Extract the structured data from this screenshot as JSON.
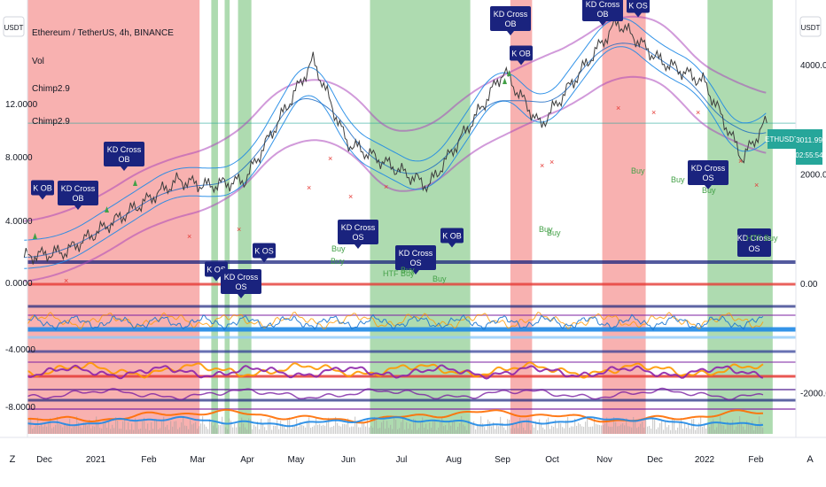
{
  "legend": {
    "title": "Ethereum / TetherUS, 4h, BINANCE",
    "lines": [
      "Vol",
      "Chimp2.9",
      "Chimp2.9"
    ]
  },
  "top_badges": {
    "left": "USDT",
    "right": "USDT"
  },
  "bottom_badges": {
    "left": "Z",
    "right": "A"
  },
  "ticker_label": {
    "symbol": "ETHUSDT",
    "price": "3011.99",
    "countdown": "02:55:54"
  },
  "chart_data": {
    "type": "line",
    "symbol": "Ethereum / TetherUS",
    "interval": "4h",
    "exchange": "BINANCE",
    "x_ticks": [
      "Dec",
      "2021",
      "Feb",
      "Mar",
      "Apr",
      "May",
      "Jun",
      "Jul",
      "Aug",
      "Sep",
      "Oct",
      "Nov",
      "Dec",
      "2022",
      "Feb"
    ],
    "left_axis_ticks": [
      "12.0000",
      "8.0000",
      "4.0000",
      "0.0000",
      "-4.0000",
      "-8.0000"
    ],
    "right_axis_ticks": [
      "4000.00",
      "2000.00",
      "0.00",
      "-2000.00"
    ],
    "right_ylim": [
      -2800,
      5200
    ],
    "last_price": 3011.99,
    "price_approx": [
      {
        "x": "Nov 20",
        "price": 500
      },
      {
        "x": "Dec 15",
        "price": 600
      },
      {
        "x": "Jan 10",
        "price": 1100
      },
      {
        "x": "Feb 20",
        "price": 1900
      },
      {
        "x": "Mar 10",
        "price": 1800
      },
      {
        "x": "Apr 01",
        "price": 1900
      },
      {
        "x": "May 12",
        "price": 4100
      },
      {
        "x": "Jun 01",
        "price": 2600
      },
      {
        "x": "Jul 20",
        "price": 1800
      },
      {
        "x": "Aug 20",
        "price": 3200
      },
      {
        "x": "Sep 03",
        "price": 3900
      },
      {
        "x": "Sep 25",
        "price": 2900
      },
      {
        "x": "Nov 10",
        "price": 4800
      },
      {
        "x": "Dec 05",
        "price": 4100
      },
      {
        "x": "Jan 01",
        "price": 3700
      },
      {
        "x": "Jan 24",
        "price": 2300
      },
      {
        "x": "Feb 08",
        "price": 3012
      }
    ],
    "shaded_zones": [
      {
        "color": "red",
        "from": "Nov 22",
        "to": "Mar 05"
      },
      {
        "color": "green",
        "from": "Mar 12",
        "to": "Mar 16"
      },
      {
        "color": "green",
        "from": "Mar 20",
        "to": "Mar 23"
      },
      {
        "color": "green",
        "from": "Mar 28",
        "to": "Apr 05"
      },
      {
        "color": "green",
        "from": "Jun 15",
        "to": "Aug 14"
      },
      {
        "color": "red",
        "from": "Sep 07",
        "to": "Sep 20"
      },
      {
        "color": "red",
        "from": "Nov 01",
        "to": "Nov 27"
      },
      {
        "color": "green",
        "from": "Jan 03",
        "to": "Feb 11"
      }
    ],
    "annotations": [
      "K OB",
      "KD Cross OB",
      "KD Cross OB",
      "K OS",
      "KD Cross OS",
      "K OS",
      "KD Cross OS",
      "KD Cross OS",
      "K OB",
      "KD Cross OB",
      "K OB",
      "KD Cross OB",
      "K OS",
      "KD Cross OS"
    ],
    "signals": [
      "Buy",
      "HTF Buy"
    ]
  }
}
